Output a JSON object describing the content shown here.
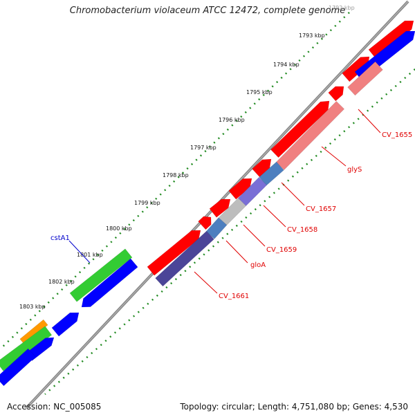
{
  "title": "Chromobacterium violaceum ATCC 12472, complete genome",
  "accession": "Accession: NC_005085",
  "summary": "Topology: circular; Length: 4,751,080 bp; Genes: 4,530",
  "colors": {
    "cds_forward": "#ff0000",
    "cds_reverse_pink": "#f08080",
    "gene_forward": "#0000ff",
    "gene_green": "#33cc33",
    "highlight_orange": "#ff9900",
    "cog_purple": "#4b4598",
    "cog_blue": "#4d7fbf",
    "cog_lavender": "#7a6fd6",
    "cog_grey": "#bdbdbd",
    "tick_green": "#228b22",
    "label_red": "#e00000",
    "label_blue": "#0000cc",
    "backbone": "#888888"
  },
  "ticks": [
    {
      "label": "1792 kbp"
    },
    {
      "label": "1793 kbp"
    },
    {
      "label": "1794 kbp"
    },
    {
      "label": "1795 kbp"
    },
    {
      "label": "1796 kbp"
    },
    {
      "label": "1797 kbp"
    },
    {
      "label": "1798 kbp"
    },
    {
      "label": "1799 kbp"
    },
    {
      "label": "1800 kbp"
    },
    {
      "label": "1801 kbp"
    },
    {
      "label": "1802 kbp"
    },
    {
      "label": "1803 kbp"
    }
  ],
  "gene_labels": [
    {
      "name": "CV_1655",
      "color": "red"
    },
    {
      "name": "glyS",
      "color": "red"
    },
    {
      "name": "CV_1657",
      "color": "red"
    },
    {
      "name": "CV_1658",
      "color": "red"
    },
    {
      "name": "CV_1659",
      "color": "red"
    },
    {
      "name": "gloA",
      "color": "red"
    },
    {
      "name": "CV_1661",
      "color": "red"
    },
    {
      "name": "cstA1",
      "color": "blue"
    }
  ]
}
